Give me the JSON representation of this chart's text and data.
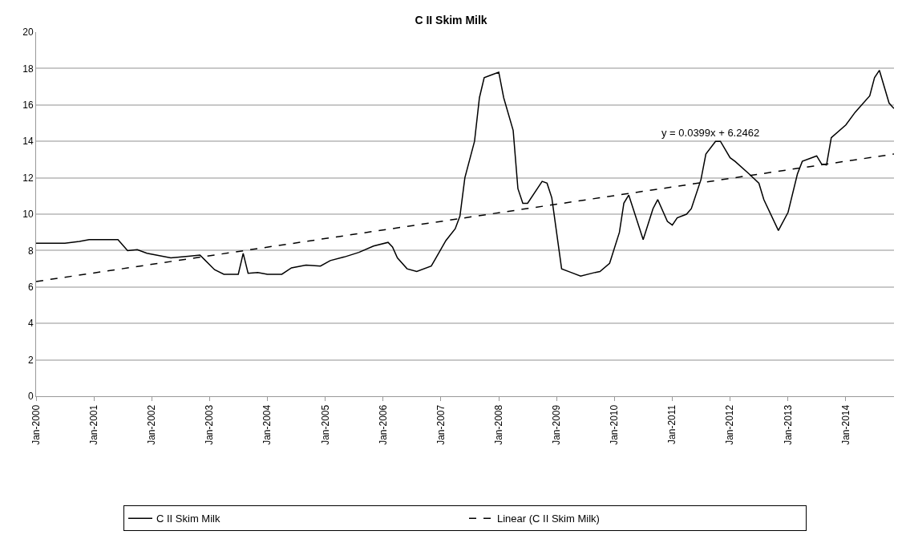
{
  "chart_data": {
    "type": "line",
    "title": "C II Skim Milk",
    "x": [
      "2000-01",
      "2000-07",
      "2000-10",
      "2000-12",
      "2001-06",
      "2001-08",
      "2001-10",
      "2001-12",
      "2002-05",
      "2002-09",
      "2002-11",
      "2003-02",
      "2003-04",
      "2003-07",
      "2003-08",
      "2003-09",
      "2003-11",
      "2004-01",
      "2004-04",
      "2004-06",
      "2004-09",
      "2004-12",
      "2005-02",
      "2005-05",
      "2005-08",
      "2005-11",
      "2006-02",
      "2006-03",
      "2006-04",
      "2006-06",
      "2006-08",
      "2006-11",
      "2006-12",
      "2007-02",
      "2007-04",
      "2007-05",
      "2007-06",
      "2007-08",
      "2007-09",
      "2007-10",
      "2007-11",
      "2008-01",
      "2008-02",
      "2008-04",
      "2008-05",
      "2008-06",
      "2008-07",
      "2008-10",
      "2008-11",
      "2008-12",
      "2009-02",
      "2009-04",
      "2009-06",
      "2009-09",
      "2009-10",
      "2009-12",
      "2010-02",
      "2010-03",
      "2010-04",
      "2010-07",
      "2010-09",
      "2010-10",
      "2010-12",
      "2011-01",
      "2011-02",
      "2011-04",
      "2011-05",
      "2011-07",
      "2011-08",
      "2011-10",
      "2011-11",
      "2012-01",
      "2012-02",
      "2012-05",
      "2012-07",
      "2012-08",
      "2012-11",
      "2013-01",
      "2013-03",
      "2013-04",
      "2013-07",
      "2013-08",
      "2013-09",
      "2013-10",
      "2014-01",
      "2014-03",
      "2014-06",
      "2014-07",
      "2014-08",
      "2014-10",
      "2014-11"
    ],
    "series": [
      {
        "name": "C II Skim Milk",
        "color": "#000000",
        "line_style": "solid",
        "values": [
          8.4,
          8.4,
          8.5,
          8.6,
          8.6,
          8.0,
          8.05,
          7.85,
          7.6,
          7.7,
          7.75,
          6.95,
          6.7,
          6.7,
          7.85,
          6.75,
          6.8,
          6.7,
          6.7,
          7.05,
          7.2,
          7.15,
          7.45,
          7.65,
          7.9,
          8.25,
          8.45,
          8.2,
          7.6,
          7.0,
          6.85,
          7.15,
          7.6,
          8.55,
          9.2,
          9.9,
          12.0,
          14.0,
          16.4,
          17.5,
          17.6,
          17.8,
          16.4,
          14.6,
          11.4,
          10.6,
          10.6,
          11.8,
          11.7,
          10.9,
          7.0,
          6.8,
          6.6,
          6.8,
          6.85,
          7.3,
          9.0,
          10.6,
          11.05,
          8.6,
          10.3,
          10.8,
          9.6,
          9.4,
          9.8,
          10.0,
          10.3,
          11.9,
          13.3,
          14.0,
          14.0,
          13.1,
          12.9,
          12.2,
          11.7,
          10.8,
          9.1,
          10.1,
          12.2,
          12.9,
          13.2,
          12.75,
          12.7,
          14.2,
          14.9,
          15.6,
          16.5,
          17.5,
          17.9,
          16.1,
          15.8
        ]
      },
      {
        "name": "Linear (C II Skim Milk)",
        "color": "#000000",
        "line_style": "dashed",
        "x": [
          "2000-01",
          "2014-11"
        ],
        "values": [
          6.3,
          13.3
        ]
      }
    ],
    "annotations": [
      "y = 0.0399x + 6.2462"
    ],
    "xlim": [
      "2000-01",
      "2014-11"
    ],
    "xticks": [
      {
        "value": "2000-01",
        "label": "Jan-2000"
      },
      {
        "value": "2001-01",
        "label": "Jan-2001"
      },
      {
        "value": "2002-01",
        "label": "Jan-2002"
      },
      {
        "value": "2003-01",
        "label": "Jan-2003"
      },
      {
        "value": "2004-01",
        "label": "Jan-2004"
      },
      {
        "value": "2005-01",
        "label": "Jan-2005"
      },
      {
        "value": "2006-01",
        "label": "Jan-2006"
      },
      {
        "value": "2007-01",
        "label": "Jan-2007"
      },
      {
        "value": "2008-01",
        "label": "Jan-2008"
      },
      {
        "value": "2009-01",
        "label": "Jan-2009"
      },
      {
        "value": "2010-01",
        "label": "Jan-2010"
      },
      {
        "value": "2011-01",
        "label": "Jan-2011"
      },
      {
        "value": "2012-01",
        "label": "Jan-2012"
      },
      {
        "value": "2013-01",
        "label": "Jan-2013"
      },
      {
        "value": "2014-01",
        "label": "Jan-2014"
      }
    ],
    "ylim": [
      0,
      20
    ],
    "yticks": [
      0,
      2,
      4,
      6,
      8,
      10,
      12,
      14,
      16,
      18,
      20
    ],
    "grid": "y",
    "legend": "bottom",
    "marker": "none"
  }
}
